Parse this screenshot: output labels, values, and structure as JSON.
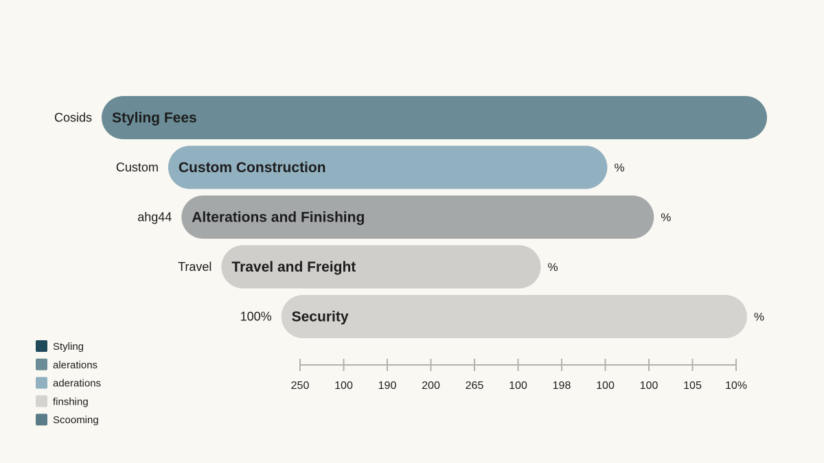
{
  "chart_data": {
    "type": "bar",
    "orientation": "horizontal",
    "bars": [
      {
        "row_label": "Cosids",
        "label": "Styling Fees",
        "suffix": "",
        "start": 0.0,
        "end": 1.0,
        "color": "#6b8c97"
      },
      {
        "row_label": "Custom",
        "label": "Custom Construction",
        "suffix": "%",
        "start": 0.1,
        "end": 0.76,
        "color": "#92b1c0"
      },
      {
        "row_label": "ahg44",
        "label": "Alterations and Finishing",
        "suffix": "%",
        "start": 0.12,
        "end": 0.83,
        "color": "#a4a8a9"
      },
      {
        "row_label": "Travel",
        "label": "Travel and Freight",
        "suffix": "%",
        "start": 0.18,
        "end": 0.66,
        "color": "#d0ceca"
      },
      {
        "row_label": "100%",
        "label": "Security",
        "suffix": "%",
        "start": 0.27,
        "end": 0.97,
        "color": "#d5d3cf"
      }
    ],
    "x_ticks": [
      "250",
      "100",
      "190",
      "200",
      "265",
      "100",
      "198",
      "100",
      "100",
      "105",
      "10%"
    ],
    "legend": [
      {
        "label": "Styling",
        "color": "#1f4a5a"
      },
      {
        "label": "alerations",
        "color": "#6b8c97"
      },
      {
        "label": "aderations",
        "color": "#92b1c0"
      },
      {
        "label": "finshing",
        "color": "#d5d3cf"
      },
      {
        "label": "Scooming",
        "color": "#5a7c88"
      }
    ],
    "legend_position": "bottom-left",
    "grid": false,
    "axis_color": "#b5b2ad"
  }
}
